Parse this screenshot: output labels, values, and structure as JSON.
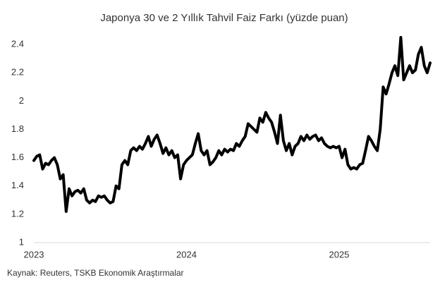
{
  "chart_data": {
    "type": "line",
    "title": "Japonya 30 ve 2 Yıllık Tahvil Faiz Farkı (yüzde puan)",
    "source": "Kaynak: Reuters, TSKB Ekonomik Araştırmalar",
    "color": "#000000",
    "categories": [
      "2023",
      null,
      null,
      null,
      null,
      null,
      null,
      null,
      null,
      null,
      null,
      null,
      null,
      null,
      null,
      null,
      null,
      null,
      null,
      null,
      null,
      null,
      null,
      null,
      null,
      null,
      null,
      null,
      null,
      null,
      null,
      null,
      null,
      null,
      null,
      null,
      null,
      null,
      null,
      null,
      null,
      null,
      null,
      null,
      null,
      null,
      null,
      null,
      null,
      null,
      null,
      null,
      "2024",
      null,
      null,
      null,
      null,
      null,
      null,
      null,
      null,
      null,
      null,
      null,
      null,
      null,
      null,
      null,
      null,
      null,
      null,
      null,
      null,
      null,
      null,
      null,
      null,
      null,
      null,
      null,
      null,
      null,
      null,
      null,
      null,
      null,
      null,
      null,
      null,
      null,
      null,
      null,
      null,
      null,
      null,
      null,
      null,
      null,
      null,
      null,
      null,
      null,
      null,
      null,
      "2025",
      null,
      null,
      null,
      null,
      null,
      null,
      null,
      null,
      null,
      null,
      null,
      null,
      null,
      null,
      null,
      null,
      null,
      null,
      null,
      null,
      null,
      null,
      null,
      null,
      null,
      null,
      null,
      null,
      null,
      null,
      null
    ],
    "values": [
      1.58,
      1.61,
      1.62,
      1.52,
      1.56,
      1.55,
      1.58,
      1.6,
      1.55,
      1.45,
      1.48,
      1.22,
      1.38,
      1.33,
      1.36,
      1.37,
      1.35,
      1.38,
      1.3,
      1.28,
      1.3,
      1.29,
      1.33,
      1.32,
      1.33,
      1.3,
      1.28,
      1.29,
      1.4,
      1.38,
      1.55,
      1.58,
      1.55,
      1.65,
      1.67,
      1.65,
      1.68,
      1.66,
      1.7,
      1.75,
      1.68,
      1.73,
      1.76,
      1.7,
      1.63,
      1.67,
      1.62,
      1.65,
      1.6,
      1.62,
      1.45,
      1.55,
      1.58,
      1.6,
      1.62,
      1.7,
      1.77,
      1.65,
      1.62,
      1.65,
      1.55,
      1.57,
      1.6,
      1.65,
      1.62,
      1.66,
      1.64,
      1.66,
      1.65,
      1.7,
      1.68,
      1.72,
      1.75,
      1.84,
      1.82,
      1.8,
      1.78,
      1.88,
      1.85,
      1.92,
      1.88,
      1.85,
      1.78,
      1.7,
      1.9,
      1.72,
      1.65,
      1.7,
      1.62,
      1.68,
      1.7,
      1.75,
      1.72,
      1.76,
      1.73,
      1.75,
      1.76,
      1.72,
      1.74,
      1.7,
      1.68,
      1.67,
      1.68,
      1.67,
      1.68,
      1.6,
      1.66,
      1.55,
      1.52,
      1.53,
      1.52,
      1.55,
      1.56,
      1.65,
      1.75,
      1.72,
      1.68,
      1.65,
      1.8,
      2.1,
      2.05,
      2.12,
      2.2,
      2.25,
      2.18,
      2.45,
      2.15,
      2.2,
      2.25,
      2.2,
      2.22,
      2.33,
      2.38,
      2.25,
      2.2,
      2.27
    ],
    "ylim": [
      1,
      2.5
    ],
    "yticks": [
      1,
      1.2,
      1.4,
      1.6,
      1.8,
      2,
      2.2,
      2.4
    ],
    "grid": false
  }
}
